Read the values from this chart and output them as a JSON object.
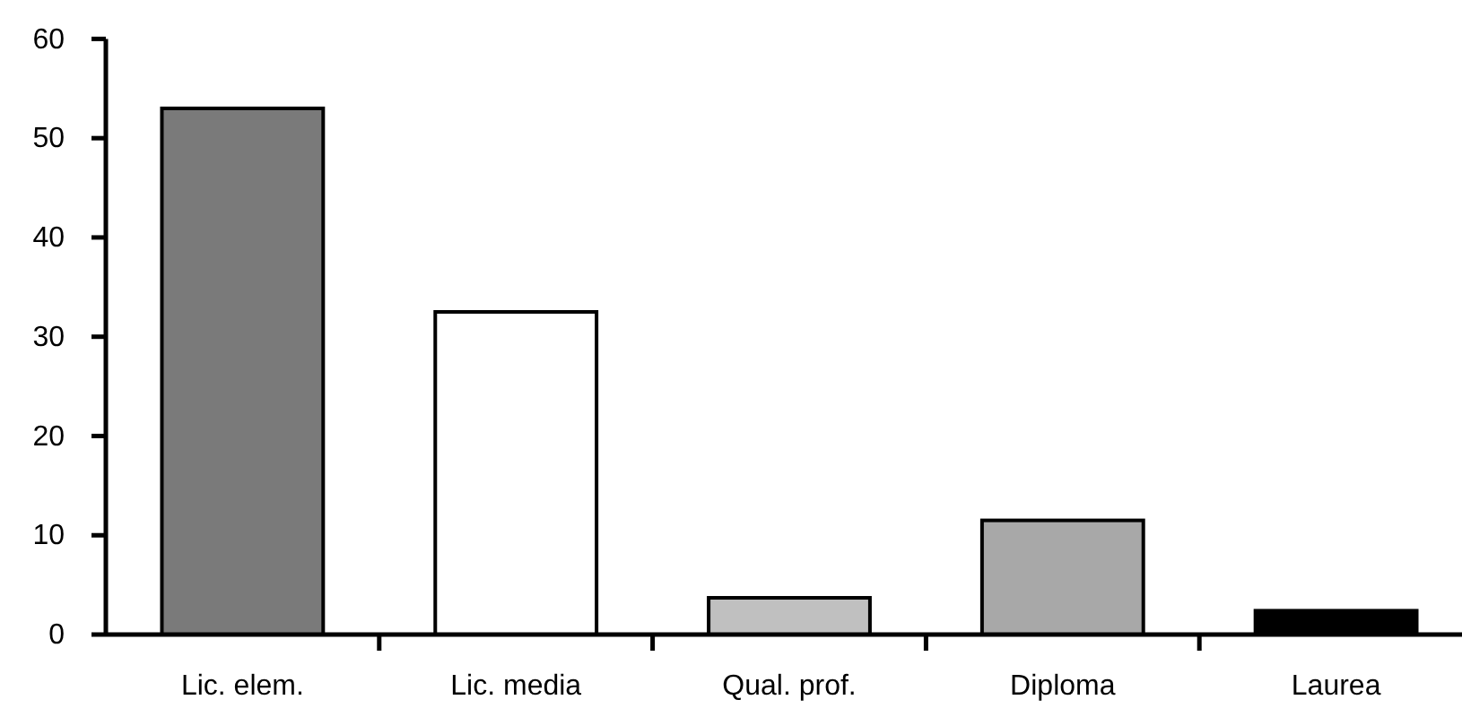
{
  "chart_data": {
    "type": "bar",
    "categories": [
      "Lic. elem.",
      "Lic. media",
      "Qual. prof.",
      "Diploma",
      "Laurea"
    ],
    "values": [
      53,
      32.5,
      3.7,
      11.5,
      2.4
    ],
    "colors": [
      "#7a7a7a",
      "#ffffff",
      "#c0c0c0",
      "#a8a8a8",
      "#000000"
    ],
    "ylim": [
      0,
      60
    ],
    "yticks": [
      0,
      10,
      20,
      30,
      40,
      50,
      60
    ]
  }
}
